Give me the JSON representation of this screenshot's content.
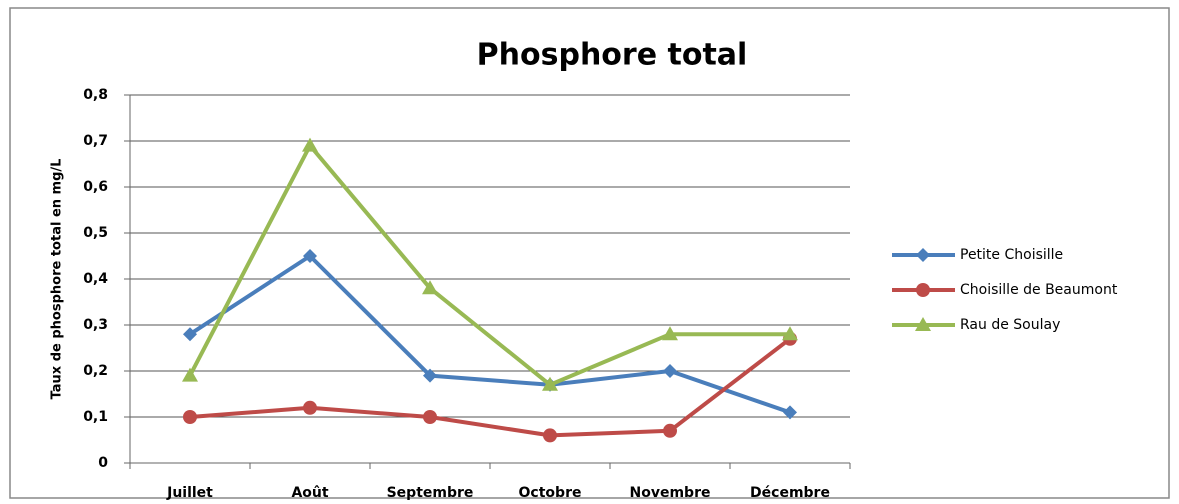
{
  "chart_data": {
    "type": "line",
    "title": "Phosphore total",
    "y_label": "Taux de phosphore total en mg/L",
    "categories": [
      "Juillet",
      "Août",
      "Septembre",
      "Octobre",
      "Novembre",
      "Décembre"
    ],
    "series": [
      {
        "name": "Petite Choisille",
        "color": "#4a7ebb",
        "marker": "diamond",
        "values": [
          0.28,
          0.45,
          0.19,
          0.17,
          0.2,
          0.11
        ]
      },
      {
        "name": "Choisille de Beaumont",
        "color": "#be4b48",
        "marker": "circle",
        "values": [
          0.1,
          0.12,
          0.1,
          0.06,
          0.07,
          0.27
        ]
      },
      {
        "name": "Rau de Soulay",
        "color": "#98b954",
        "marker": "triangle",
        "values": [
          0.19,
          0.69,
          0.38,
          0.17,
          0.28,
          0.28
        ]
      }
    ],
    "ylim": [
      0,
      0.8
    ],
    "yticks": [
      0,
      {
        "value": 0.1,
        "label": "0,1"
      },
      {
        "value": 0.2,
        "label": "0,2"
      },
      {
        "value": 0.3,
        "label": "0,3"
      },
      {
        "value": 0.4,
        "label": "0,4"
      },
      {
        "value": 0.5,
        "label": "0,5"
      },
      {
        "value": 0.6,
        "label": "0,6"
      },
      {
        "value": 0.7,
        "label": "0,7"
      },
      {
        "value": 0.8,
        "label": "0,8"
      }
    ],
    "grid": true,
    "legend": "right"
  }
}
